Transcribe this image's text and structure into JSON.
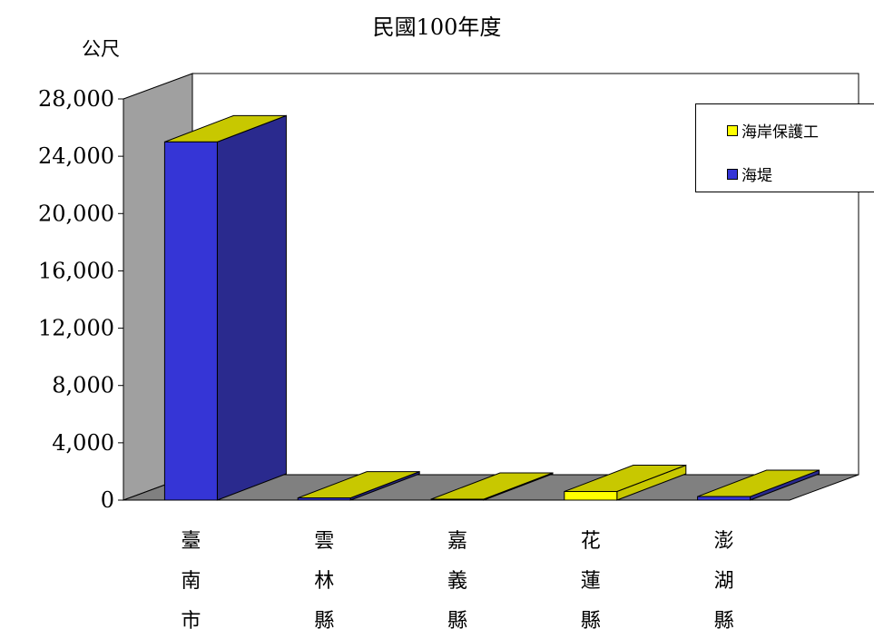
{
  "title": "民國100年度",
  "unit_label": "公尺",
  "colors": {
    "seawall_front": "#3535d6",
    "seawall_side": "#2a2a8e",
    "seawall_top": "#c8c800",
    "protection_front": "#ffff00",
    "protection_side": "#c8c800",
    "protection_top": "#c8c800",
    "wall": "#a0a0a0",
    "floor": "#808080"
  },
  "legend": {
    "items": [
      {
        "label": "海岸保護工",
        "color": "#ffff00"
      },
      {
        "label": "海堤",
        "color": "#3535d6"
      }
    ]
  },
  "chart_data": {
    "type": "bar",
    "title": "民國100年度",
    "ylabel": "公尺",
    "xlabel": "",
    "ylim": [
      0,
      28000
    ],
    "yticks": [
      "0",
      "4,000",
      "8,000",
      "12,000",
      "16,000",
      "20,000",
      "24,000",
      "28,000"
    ],
    "categories": [
      "臺南市",
      "雲林縣",
      "嘉義縣",
      "花蓮縣",
      "澎湖縣"
    ],
    "series": [
      {
        "name": "海堤",
        "values": [
          25000,
          150,
          0,
          0,
          250
        ]
      },
      {
        "name": "海岸保護工",
        "values": [
          0,
          0,
          0,
          600,
          0
        ]
      }
    ],
    "legend_position": "top-right",
    "grid": false
  }
}
